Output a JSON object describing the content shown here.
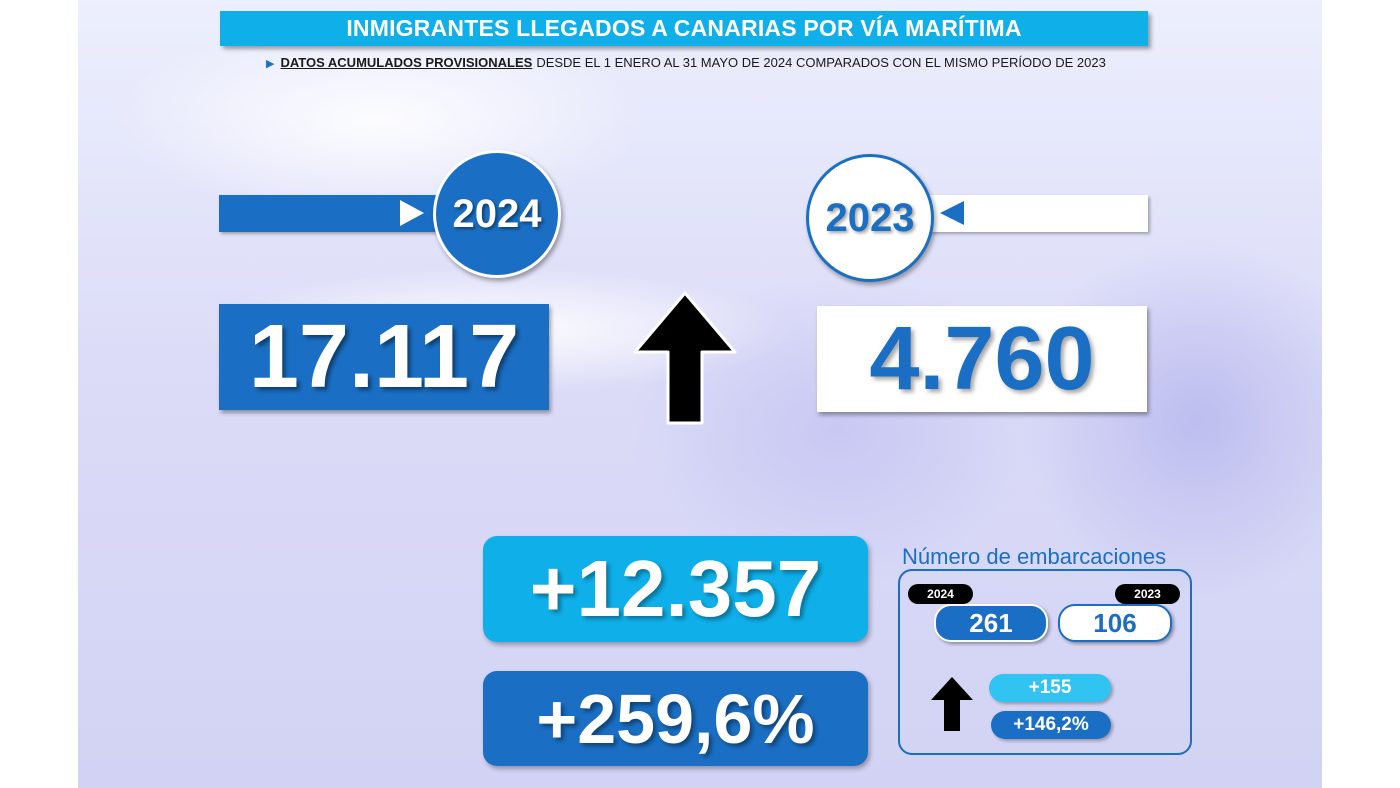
{
  "header": {
    "title": "INMIGRANTES LLEGADOS A CANARIAS POR VÍA MARÍTIMA",
    "subtitle_bold": "DATOS ACUMULADOS PROVISIONALES",
    "subtitle_rest": "DESDE EL 1 ENERO AL 31 MAYO DE 2024 COMPARADOS CON EL MISMO PERÍODO DE 2023"
  },
  "current": {
    "year": "2024",
    "immigrants": "17.117"
  },
  "previous": {
    "year": "2023",
    "immigrants": "4.760"
  },
  "comparison": {
    "difference": "+12.357",
    "percent": "+259,6%"
  },
  "boats": {
    "title": "Número de embarcaciones",
    "current_year": "2024",
    "previous_year": "2023",
    "current_value": "261",
    "previous_value": "106",
    "difference": "+155",
    "percent": "+146,2%"
  },
  "colors": {
    "dark_blue": "#1a6fc4",
    "light_blue": "#0fb0ea",
    "arrow": "#000000"
  },
  "icons": {
    "trend": "arrow-up-icon",
    "marker_right": "triangle-right-icon",
    "marker_left": "triangle-left-icon"
  }
}
